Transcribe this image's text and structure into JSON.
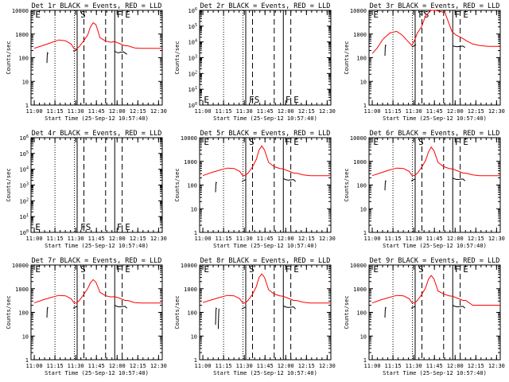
{
  "figure": {
    "xlabel": "Start Time (25-Sep-12 10:57:40)",
    "ylabel": "Counts/sec",
    "x_start_time": "10:57:40",
    "xticks": [
      "11:00",
      "11:15",
      "11:30",
      "11:45",
      "12:00",
      "12:15",
      "12:30"
    ],
    "legend_note": "BLACK = Events, RED = LLD",
    "colors": {
      "events": "#000000",
      "lld": "#ff0000",
      "axes": "#000000",
      "background": "#ffffff"
    }
  },
  "chart_data": [
    {
      "type": "line",
      "detector": "1r",
      "title": "Det 1r BLACK = Events, RED = LLD",
      "ylabel": "Counts/sec",
      "xlabel": "Start Time (25-Sep-12 10:57:40)",
      "ylim": [
        1,
        10000
      ],
      "yscale": "log",
      "yticks": [
        "1",
        "10",
        "100",
        "1000",
        "10000"
      ],
      "markers": [
        "E",
        "S",
        "F",
        "E"
      ],
      "series": [
        {
          "name": "Events",
          "segments": [
            {
              "x": [
                11.5,
                11.75,
                12,
                12.25,
                12.5
              ],
              "y": [
                60,
                130,
                160,
                150,
                150
              ]
            },
            {
              "x": [
                30.5,
                31,
                32,
                33,
                33.3
              ],
              "y": [
                200,
                190,
                200,
                220,
                230
              ]
            },
            {
              "x": [
                60.5,
                61,
                63,
                65,
                67,
                69.5
              ],
              "y": [
                200,
                180,
                160,
                170,
                175,
                140
              ]
            }
          ]
        },
        {
          "name": "LLD",
          "x": [
            2.3,
            8,
            14,
            20,
            25,
            29,
            31,
            33,
            35,
            38,
            41,
            43,
            45,
            47,
            50,
            54,
            58,
            60.5,
            63,
            66,
            68,
            70,
            75,
            80,
            86,
            95
          ],
          "y": [
            250,
            320,
            420,
            560,
            520,
            380,
            250,
            230,
            300,
            500,
            900,
            2000,
            3000,
            2500,
            700,
            500,
            450,
            480,
            420,
            360,
            320,
            320,
            260,
            250,
            250,
            250
          ]
        }
      ]
    },
    {
      "type": "line",
      "detector": "2r",
      "title": "Det 2r BLACK = Events, RED = LLD",
      "ylabel": "Counts/sec",
      "xlabel": "Start Time (25-Sep-12 10:57:40)",
      "ylim": [
        1,
        1000000
      ],
      "yscale": "log",
      "yticks": [
        "10^0",
        "10^1",
        "10^2",
        "10^3",
        "10^4",
        "10^5",
        "10^6"
      ],
      "markers": [
        "E",
        "FS",
        "F",
        "E"
      ],
      "series": []
    },
    {
      "type": "line",
      "detector": "3r",
      "title": "Det 3r BLACK = Events, RED = LLD",
      "ylabel": "Counts/sec",
      "xlabel": "Start Time (25-Sep-12 10:57:40)",
      "ylim": [
        1,
        10000
      ],
      "yscale": "log",
      "yticks": [
        "1",
        "10",
        "100",
        "1000",
        "10000"
      ],
      "markers": [
        "E",
        "FS",
        "F",
        "E"
      ],
      "series": [
        {
          "name": "Events",
          "segments": [
            {
              "x": [
                11.5,
                11.75,
                12,
                12.25,
                12.5
              ],
              "y": [
                120,
                280,
                340,
                330,
                330
              ]
            },
            {
              "x": [
                31,
                32,
                33,
                34
              ],
              "y": [
                280,
                300,
                330,
                350
              ]
            },
            {
              "x": [
                60.5,
                62,
                64,
                66,
                68,
                69.5
              ],
              "y": [
                320,
                300,
                290,
                300,
                310,
                270
              ]
            }
          ]
        },
        {
          "name": "LLD",
          "x": [
            2.3,
            6,
            10,
            15,
            20,
            24,
            28,
            31,
            33,
            35,
            38,
            41,
            45,
            48,
            55,
            60,
            63,
            67,
            71,
            75,
            80,
            86,
            95
          ],
          "y": [
            150,
            260,
            600,
            1100,
            1300,
            900,
            500,
            330,
            550,
            1100,
            2000,
            6000,
            10000,
            10000,
            8000,
            1300,
            900,
            700,
            500,
            380,
            330,
            300,
            300
          ]
        }
      ]
    },
    {
      "type": "line",
      "detector": "4r",
      "title": "Det 4r BLACK = Events, RED = LLD",
      "ylabel": "Counts/sec",
      "xlabel": "Start Time (25-Sep-12 10:57:40)",
      "ylim": [
        1,
        1000000
      ],
      "yscale": "log",
      "yticks": [
        "10^0",
        "10^1",
        "10^2",
        "10^3",
        "10^4",
        "10^5",
        "10^6"
      ],
      "markers": [
        "E",
        "FS",
        "F",
        "E"
      ],
      "series": []
    },
    {
      "type": "line",
      "detector": "5r",
      "title": "Det 5r BLACK = Events, RED = LLD",
      "ylabel": "Counts/sec",
      "xlabel": "Start Time (25-Sep-12 10:57:40)",
      "ylim": [
        1,
        10000
      ],
      "yscale": "log",
      "yticks": [
        "1",
        "10",
        "100",
        "1000",
        "10000"
      ],
      "markers": [
        "E",
        "S",
        "F",
        "E"
      ],
      "series": [
        {
          "name": "Events",
          "segments": [
            {
              "x": [
                11.5,
                11.75,
                12,
                12.25,
                12.5
              ],
              "y": [
                50,
                100,
                130,
                125,
                125
              ]
            },
            {
              "x": [
                30.5,
                31.5,
                32.5,
                33.5
              ],
              "y": [
                140,
                150,
                160,
                170
              ]
            },
            {
              "x": [
                60.5,
                62,
                64,
                66,
                68,
                69.5
              ],
              "y": [
                190,
                170,
                160,
                165,
                170,
                140
              ]
            }
          ]
        },
        {
          "name": "LLD",
          "x": [
            2.3,
            8,
            14,
            20,
            25,
            29,
            31,
            33,
            35,
            38,
            41,
            43,
            45,
            47,
            50,
            54,
            58,
            60.5,
            63,
            66,
            68,
            70,
            75,
            80,
            86,
            95
          ],
          "y": [
            250,
            330,
            420,
            520,
            500,
            380,
            260,
            250,
            320,
            550,
            1200,
            3000,
            4500,
            3000,
            900,
            600,
            500,
            480,
            420,
            360,
            320,
            320,
            270,
            250,
            250,
            250
          ]
        }
      ]
    },
    {
      "type": "line",
      "detector": "6r",
      "title": "Det 6r BLACK = Events, RED = LLD",
      "ylabel": "Counts/sec",
      "xlabel": "Start Time (25-Sep-12 10:57:40)",
      "ylim": [
        1,
        10000
      ],
      "yscale": "log",
      "yticks": [
        "1",
        "10",
        "100",
        "1000",
        "10000"
      ],
      "markers": [
        "E",
        "S",
        "F",
        "E"
      ],
      "series": [
        {
          "name": "Events",
          "segments": [
            {
              "x": [
                11.5,
                11.75,
                12,
                12.25,
                12.5
              ],
              "y": [
                60,
                120,
                150,
                145,
                145
              ]
            },
            {
              "x": [
                30.5,
                31.5,
                32.5,
                33.5
              ],
              "y": [
                150,
                160,
                170,
                180
              ]
            },
            {
              "x": [
                60.5,
                62,
                64,
                66,
                68,
                69.5
              ],
              "y": [
                200,
                180,
                170,
                175,
                180,
                150
              ]
            }
          ]
        },
        {
          "name": "LLD",
          "x": [
            2.3,
            8,
            14,
            20,
            25,
            29,
            31,
            33,
            35,
            38,
            41,
            43,
            45,
            47,
            50,
            54,
            58,
            60.5,
            63,
            66,
            68,
            70,
            75,
            80,
            86,
            95
          ],
          "y": [
            250,
            320,
            420,
            520,
            500,
            380,
            260,
            250,
            320,
            550,
            1100,
            2500,
            4000,
            2800,
            900,
            600,
            500,
            480,
            420,
            360,
            320,
            320,
            270,
            250,
            250,
            250
          ]
        }
      ]
    },
    {
      "type": "line",
      "detector": "7r",
      "title": "Det 7r BLACK = Events, RED = LLD",
      "ylabel": "Counts/sec",
      "xlabel": "Start Time (25-Sep-12 10:57:40)",
      "ylim": [
        1,
        10000
      ],
      "yscale": "log",
      "yticks": [
        "1",
        "10",
        "100",
        "1000",
        "10000"
      ],
      "markers": [
        "E",
        "S",
        "F",
        "E"
      ],
      "series": [
        {
          "name": "Events",
          "segments": [
            {
              "x": [
                11.5,
                11.75,
                12,
                12.25,
                12.5
              ],
              "y": [
                60,
                130,
                160,
                155,
                155
              ]
            },
            {
              "x": [
                30.5,
                31.5,
                32.5,
                33.5
              ],
              "y": [
                150,
                160,
                170,
                180
              ]
            },
            {
              "x": [
                60.5,
                62,
                64,
                66,
                68,
                69.5
              ],
              "y": [
                200,
                180,
                170,
                175,
                180,
                150
              ]
            }
          ]
        },
        {
          "name": "LLD",
          "x": [
            2.3,
            8,
            14,
            20,
            25,
            29,
            31,
            33,
            35,
            38,
            41,
            43,
            45,
            47,
            50,
            54,
            58,
            60.5,
            63,
            66,
            68,
            70,
            75,
            80,
            86,
            95
          ],
          "y": [
            250,
            330,
            420,
            520,
            500,
            380,
            260,
            250,
            320,
            550,
            1000,
            1800,
            2400,
            1900,
            700,
            500,
            450,
            460,
            420,
            360,
            320,
            320,
            260,
            250,
            250,
            250
          ]
        }
      ]
    },
    {
      "type": "line",
      "detector": "8r",
      "title": "Det 8r BLACK = Events, RED = LLD",
      "ylabel": "Counts/sec",
      "xlabel": "Start Time (25-Sep-12 10:57:40)",
      "ylim": [
        1,
        10000
      ],
      "yscale": "log",
      "yticks": [
        "1",
        "10",
        "100",
        "1000",
        "10000"
      ],
      "markers": [
        "E",
        "S",
        "F",
        "E"
      ],
      "series": [
        {
          "name": "Events",
          "segments": [
            {
              "x": [
                11.5,
                11.75,
                12,
                12.25,
                12.5
              ],
              "y": [
                30,
                90,
                150,
                145,
                145
              ]
            },
            {
              "x": [
                13.5,
                13.75,
                14,
                14.25
              ],
              "y": [
                20,
                80,
                140,
                140
              ]
            },
            {
              "x": [
                30.5,
                31.5,
                32.5,
                33.5
              ],
              "y": [
                140,
                150,
                160,
                170
              ]
            },
            {
              "x": [
                60.5,
                62,
                64,
                66,
                68,
                69.5
              ],
              "y": [
                190,
                170,
                160,
                165,
                170,
                140
              ]
            }
          ]
        },
        {
          "name": "LLD",
          "x": [
            2.3,
            8,
            14,
            20,
            25,
            29,
            31,
            33,
            35,
            38,
            41,
            43,
            45,
            47,
            50,
            54,
            58,
            60.5,
            63,
            66,
            68,
            70,
            75,
            80,
            86,
            95
          ],
          "y": [
            260,
            330,
            420,
            520,
            500,
            380,
            260,
            250,
            320,
            550,
            1200,
            3000,
            4200,
            3000,
            900,
            600,
            500,
            480,
            420,
            360,
            320,
            320,
            270,
            250,
            250,
            250
          ]
        }
      ]
    },
    {
      "type": "line",
      "detector": "9r",
      "title": "Det 9r BLACK = Events, RED = LLD",
      "ylabel": "Counts/sec",
      "xlabel": "Start Time (25-Sep-12 10:57:40)",
      "ylim": [
        1,
        10000
      ],
      "yscale": "log",
      "yticks": [
        "1",
        "10",
        "100",
        "1000",
        "10000"
      ],
      "markers": [
        "E",
        "S",
        "F",
        "E"
      ],
      "series": [
        {
          "name": "Events",
          "segments": [
            {
              "x": [
                11.5,
                11.75,
                12,
                12.25,
                12.5
              ],
              "y": [
                60,
                130,
                160,
                155,
                155
              ]
            },
            {
              "x": [
                30.5,
                31.5,
                32.5,
                33.5
              ],
              "y": [
                150,
                160,
                170,
                180
              ]
            },
            {
              "x": [
                60.5,
                62,
                64,
                66,
                68,
                69.5
              ],
              "y": [
                200,
                180,
                170,
                175,
                180,
                150
              ]
            }
          ]
        },
        {
          "name": "LLD",
          "x": [
            2.3,
            8,
            14,
            20,
            25,
            29,
            31,
            33,
            35,
            38,
            41,
            43,
            45,
            47,
            50,
            54,
            58,
            60.5,
            63,
            66,
            68,
            70,
            75,
            80,
            86,
            95
          ],
          "y": [
            250,
            330,
            420,
            520,
            500,
            380,
            260,
            250,
            320,
            550,
            1100,
            2500,
            3600,
            2600,
            800,
            600,
            500,
            480,
            420,
            360,
            320,
            320,
            200,
            200,
            200,
            200
          ]
        }
      ]
    }
  ]
}
